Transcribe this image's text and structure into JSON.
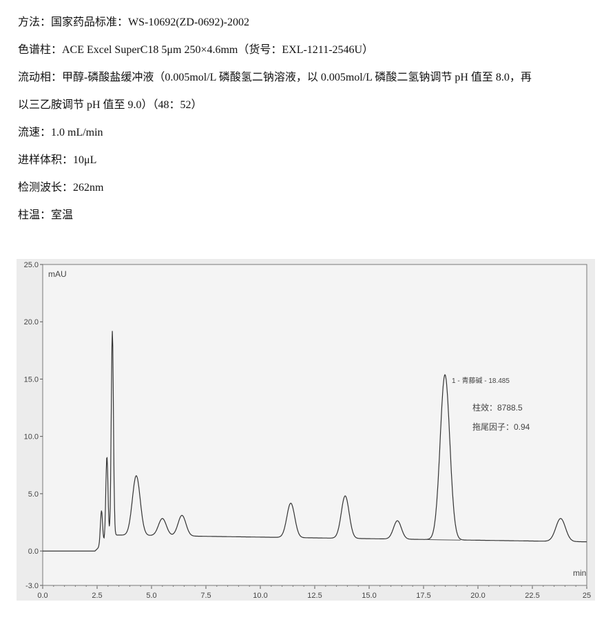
{
  "lines": [
    "方法：国家药品标准：WS-10692(ZD-0692)-2002",
    "色谱柱：ACE Excel SuperC18 5μm 250×4.6mm（货号：EXL-1211-2546U）",
    "流动相：甲醇-磷酸盐缓冲液（0.005mol/L 磷酸氢二钠溶液，以 0.005mol/L 磷酸二氢钠调节 pH 值至 8.0，再",
    "以三乙胺调节 pH 值至 9.0）（48：52）",
    "流速：1.0 mL/min",
    "进样体积：10μL",
    "检测波长：262nm",
    "柱温：室温"
  ],
  "chart_data": {
    "type": "line",
    "xlabel": "min",
    "ylabel": "mAU",
    "xlim": [
      0,
      25
    ],
    "ylim": [
      -3,
      25
    ],
    "xticks": [
      "0.0",
      "2.5",
      "5.0",
      "7.5",
      "10.0",
      "12.5",
      "15.0",
      "17.5",
      "20.0",
      "22.5",
      "25"
    ],
    "yticks": [
      "-3.0",
      "0.0",
      "5.0",
      "10.0",
      "15.0",
      "20.0",
      "25.0"
    ],
    "peaks": [
      {
        "rt": 2.7,
        "height": 3.0
      },
      {
        "rt": 2.95,
        "height": 7.3
      },
      {
        "rt": 3.2,
        "height": 17.8
      },
      {
        "rt": 4.3,
        "height": 5.2
      },
      {
        "rt": 5.5,
        "height": 1.5
      },
      {
        "rt": 6.4,
        "height": 1.8
      },
      {
        "rt": 11.4,
        "height": 3.0
      },
      {
        "rt": 13.9,
        "height": 3.7
      },
      {
        "rt": 16.3,
        "height": 1.6
      },
      {
        "rt": 18.485,
        "height": 14.4
      },
      {
        "rt": 23.8,
        "height": 2.0
      }
    ],
    "annotation": {
      "peak_label": "1 - 青藤碱 - 18.485",
      "efficiency": "柱效：8788.5",
      "tailing": "拖尾因子：0.94"
    },
    "line_color": "#333333"
  }
}
